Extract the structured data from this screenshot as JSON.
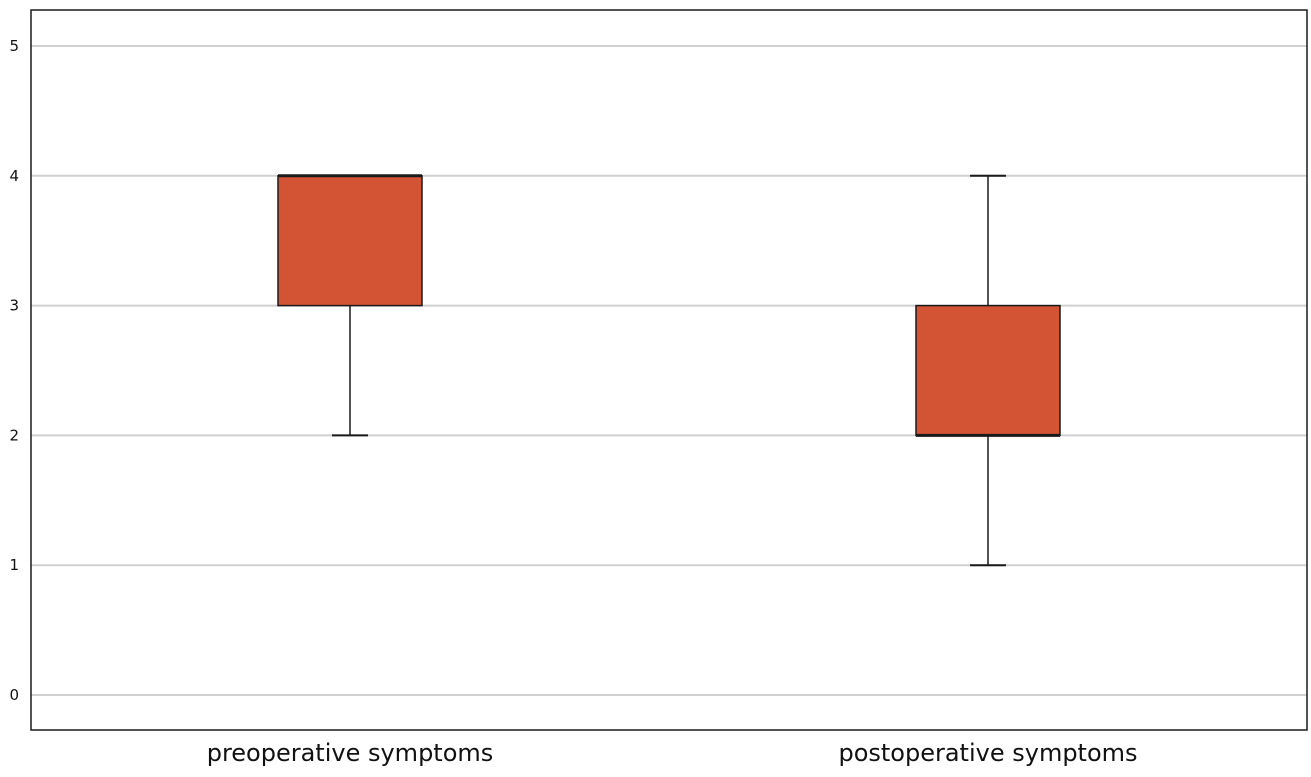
{
  "chart_data": {
    "type": "boxplot",
    "title": "",
    "xlabel": "",
    "ylabel": "",
    "ylim": [
      0,
      5
    ],
    "yticks": [
      0,
      1,
      2,
      3,
      4,
      5
    ],
    "grid": "horizontal",
    "legend": "none",
    "categories": [
      "preoperative symptoms",
      "postoperative symptoms"
    ],
    "boxes": [
      {
        "category": "preoperative symptoms",
        "whisker_low": 2,
        "q1": 3,
        "median": 4,
        "q3": 4,
        "whisker_high": 4
      },
      {
        "category": "postoperative symptoms",
        "whisker_low": 1,
        "q1": 2,
        "median": 2,
        "q3": 3,
        "whisker_high": 4
      }
    ],
    "colors": {
      "box_fill": "#d35434",
      "box_stroke": "#1a1a1a",
      "grid": "#d0d0d0",
      "frame": "#1a1a1a"
    }
  }
}
